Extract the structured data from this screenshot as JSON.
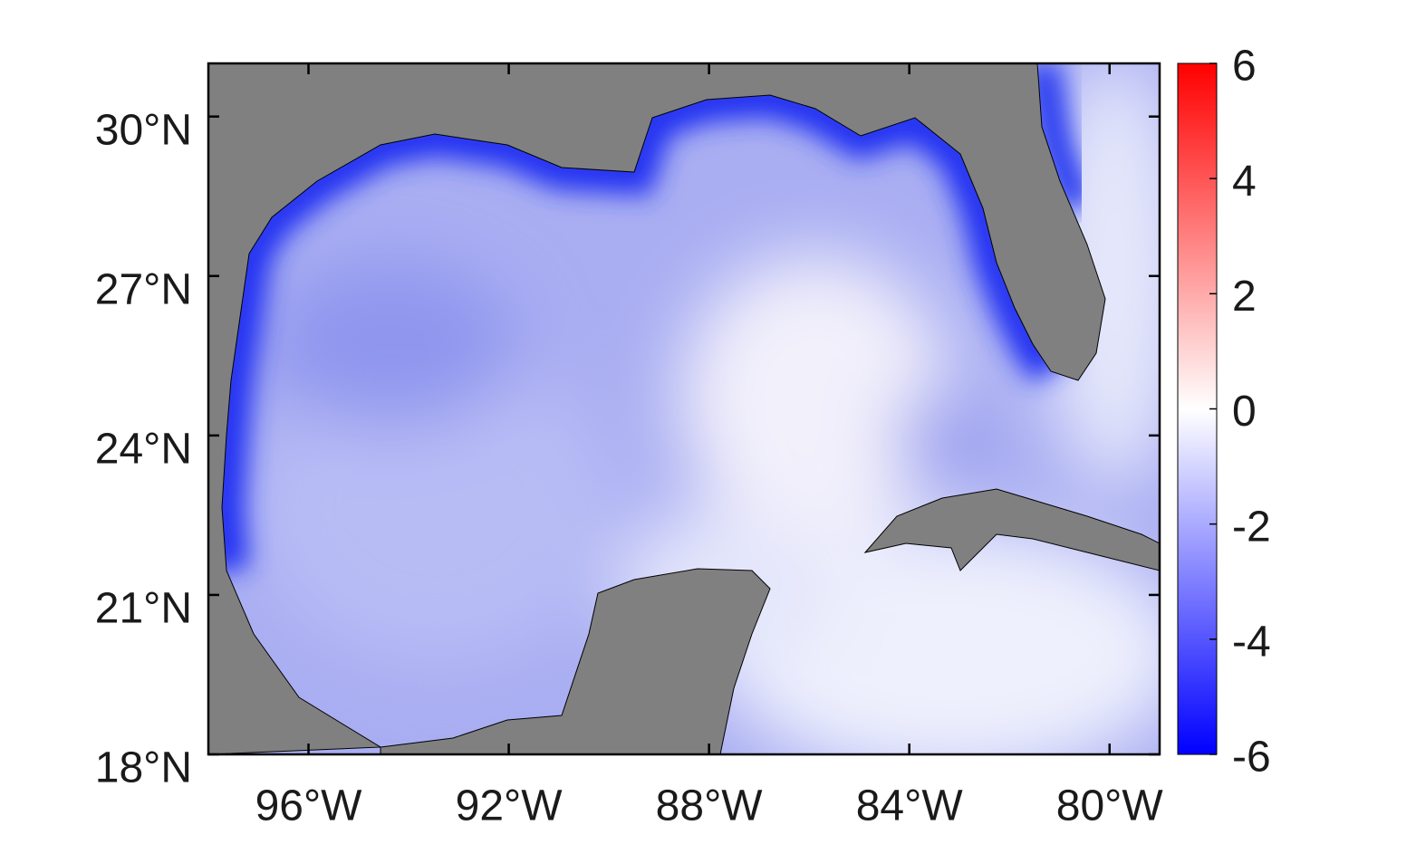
{
  "map": {
    "xlim": [
      -98,
      -79
    ],
    "ylim": [
      18,
      31
    ],
    "lon_ticks": [
      {
        "value": -96,
        "label": "96°W"
      },
      {
        "value": -92,
        "label": "92°W"
      },
      {
        "value": -88,
        "label": "88°W"
      },
      {
        "value": -84,
        "label": "84°W"
      },
      {
        "value": -80,
        "label": "80°W"
      }
    ],
    "lat_ticks": [
      {
        "value": 18,
        "label": "18°N"
      },
      {
        "value": 21,
        "label": "21°N"
      },
      {
        "value": 24,
        "label": "24°N"
      },
      {
        "value": 27,
        "label": "27°N"
      },
      {
        "value": 30,
        "label": "30°N"
      }
    ],
    "colorbar": {
      "lim": [
        -6,
        6
      ],
      "ticks": [
        -6,
        -4,
        -2,
        0,
        2,
        4,
        6
      ],
      "colors": [
        "#0000ff",
        "#ffffff",
        "#ff0000"
      ]
    }
  }
}
